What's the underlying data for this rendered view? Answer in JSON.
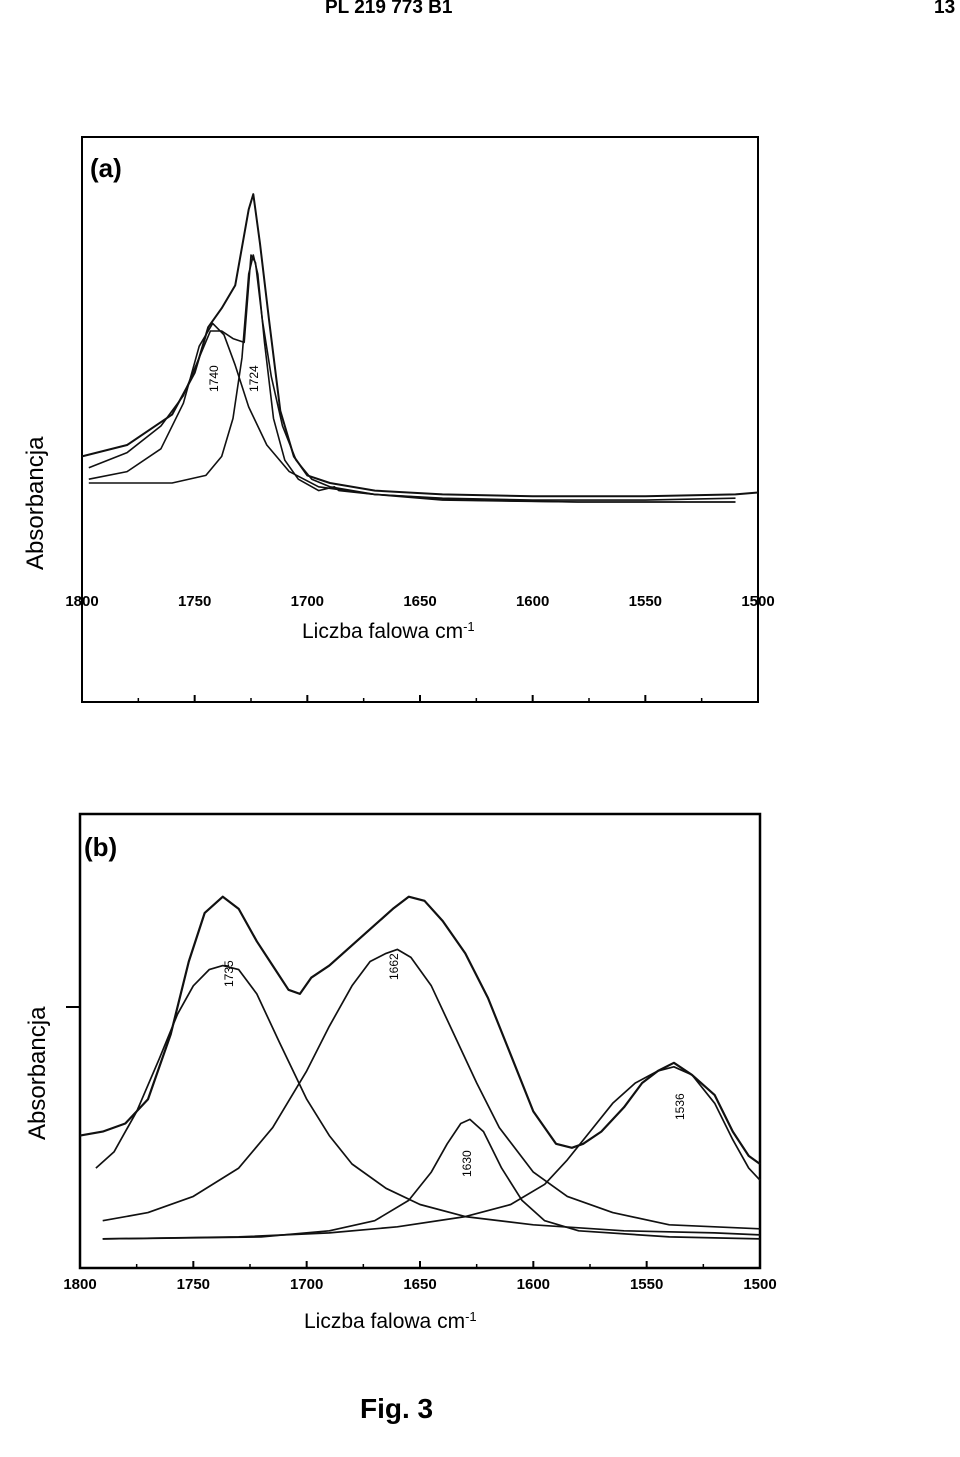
{
  "header": {
    "document_id": "PL 219 773 B1",
    "page_number": "13"
  },
  "figure_label": "Fig. 3",
  "chart_data": [
    {
      "type": "line",
      "panel_label": "(a)",
      "xlabel": "Liczba falowa cm",
      "xlabel_sup": "-1",
      "ylabel": "Absorbancja",
      "xlim": [
        1800,
        1500
      ],
      "x_reversed": true,
      "ylim": [
        0,
        1
      ],
      "x_ticks": [
        "1800",
        "1750",
        "1700",
        "1650",
        "1600",
        "1550",
        "1500"
      ],
      "grid": false,
      "peak_annotations": [
        "1740",
        "1724"
      ],
      "series": [
        {
          "values": [
            [
              1800,
              0.22
            ],
            [
              1780,
              0.25
            ],
            [
              1760,
              0.33
            ],
            [
              1750,
              0.44
            ],
            [
              1744,
              0.56
            ],
            [
              1738,
              0.61
            ],
            [
              1732,
              0.67
            ],
            [
              1726,
              0.87
            ],
            [
              1724,
              0.91
            ],
            [
              1721,
              0.78
            ],
            [
              1717,
              0.58
            ],
            [
              1712,
              0.34
            ],
            [
              1706,
              0.22
            ],
            [
              1700,
              0.17
            ],
            [
              1690,
              0.15
            ],
            [
              1670,
              0.13
            ],
            [
              1640,
              0.12
            ],
            [
              1600,
              0.115
            ],
            [
              1550,
              0.115
            ],
            [
              1510,
              0.12
            ],
            [
              1500,
              0.125
            ]
          ]
        },
        {
          "values": [
            [
              1797,
              0.19
            ],
            [
              1780,
              0.23
            ],
            [
              1765,
              0.3
            ],
            [
              1755,
              0.38
            ],
            [
              1748,
              0.48
            ],
            [
              1743,
              0.55
            ],
            [
              1738,
              0.55
            ],
            [
              1733,
              0.53
            ],
            [
              1728,
              0.52
            ],
            [
              1725,
              0.75
            ],
            [
              1723,
              0.73
            ],
            [
              1720,
              0.58
            ],
            [
              1716,
              0.43
            ],
            [
              1711,
              0.3
            ],
            [
              1705,
              0.21
            ],
            [
              1698,
              0.16
            ],
            [
              1690,
              0.14
            ],
            [
              1670,
              0.12
            ],
            [
              1640,
              0.11
            ],
            [
              1600,
              0.105
            ],
            [
              1550,
              0.105
            ],
            [
              1510,
              0.11
            ]
          ]
        },
        {
          "values": [
            [
              1797,
              0.16
            ],
            [
              1780,
              0.18
            ],
            [
              1765,
              0.24
            ],
            [
              1755,
              0.36
            ],
            [
              1748,
              0.51
            ],
            [
              1742,
              0.57
            ],
            [
              1737,
              0.54
            ],
            [
              1732,
              0.46
            ],
            [
              1726,
              0.35
            ],
            [
              1718,
              0.25
            ],
            [
              1708,
              0.18
            ],
            [
              1695,
              0.14
            ],
            [
              1670,
              0.12
            ],
            [
              1630,
              0.105
            ],
            [
              1580,
              0.1
            ],
            [
              1510,
              0.1
            ]
          ]
        },
        {
          "values": [
            [
              1797,
              0.15
            ],
            [
              1760,
              0.15
            ],
            [
              1745,
              0.17
            ],
            [
              1738,
              0.22
            ],
            [
              1733,
              0.32
            ],
            [
              1729,
              0.48
            ],
            [
              1726,
              0.7
            ],
            [
              1724,
              0.75
            ],
            [
              1722,
              0.7
            ],
            [
              1719,
              0.52
            ],
            [
              1715,
              0.32
            ],
            [
              1710,
              0.21
            ],
            [
              1704,
              0.16
            ],
            [
              1695,
              0.13
            ],
            [
              1688,
              0.14
            ],
            [
              1686,
              0.13
            ],
            [
              1670,
              0.12
            ],
            [
              1640,
              0.105
            ],
            [
              1580,
              0.1
            ],
            [
              1510,
              0.1
            ]
          ]
        }
      ]
    },
    {
      "type": "line",
      "panel_label": "(b)",
      "xlabel": "Liczba falowa cm",
      "xlabel_sup": "-1",
      "ylabel": "Absorbancja",
      "xlim": [
        1800,
        1500
      ],
      "x_reversed": true,
      "ylim": [
        0,
        1
      ],
      "x_ticks": [
        "1800",
        "1750",
        "1700",
        "1650",
        "1600",
        "1550",
        "1500"
      ],
      "grid": false,
      "peak_annotations": [
        "1735",
        "1662",
        "1630",
        "1536"
      ],
      "series": [
        {
          "values": [
            [
              1800,
              0.27
            ],
            [
              1790,
              0.28
            ],
            [
              1780,
              0.3
            ],
            [
              1770,
              0.36
            ],
            [
              1760,
              0.52
            ],
            [
              1752,
              0.7
            ],
            [
              1745,
              0.82
            ],
            [
              1737,
              0.86
            ],
            [
              1730,
              0.83
            ],
            [
              1722,
              0.75
            ],
            [
              1715,
              0.69
            ],
            [
              1708,
              0.63
            ],
            [
              1703,
              0.62
            ],
            [
              1698,
              0.66
            ],
            [
              1690,
              0.69
            ],
            [
              1680,
              0.74
            ],
            [
              1670,
              0.79
            ],
            [
              1662,
              0.83
            ],
            [
              1655,
              0.86
            ],
            [
              1648,
              0.85
            ],
            [
              1640,
              0.8
            ],
            [
              1630,
              0.72
            ],
            [
              1620,
              0.61
            ],
            [
              1610,
              0.47
            ],
            [
              1600,
              0.33
            ],
            [
              1590,
              0.25
            ],
            [
              1583,
              0.24
            ],
            [
              1578,
              0.25
            ],
            [
              1570,
              0.28
            ],
            [
              1560,
              0.34
            ],
            [
              1552,
              0.4
            ],
            [
              1545,
              0.43
            ],
            [
              1538,
              0.45
            ],
            [
              1530,
              0.42
            ],
            [
              1520,
              0.37
            ],
            [
              1512,
              0.28
            ],
            [
              1505,
              0.22
            ],
            [
              1500,
              0.2
            ]
          ]
        },
        {
          "name": "1735",
          "peak": 1735,
          "height": 0.69,
          "values": [
            [
              1793,
              0.19
            ],
            [
              1785,
              0.23
            ],
            [
              1775,
              0.33
            ],
            [
              1765,
              0.46
            ],
            [
              1757,
              0.57
            ],
            [
              1750,
              0.64
            ],
            [
              1743,
              0.68
            ],
            [
              1737,
              0.69
            ],
            [
              1730,
              0.68
            ],
            [
              1722,
              0.62
            ],
            [
              1712,
              0.5
            ],
            [
              1700,
              0.36
            ],
            [
              1690,
              0.27
            ],
            [
              1680,
              0.2
            ],
            [
              1665,
              0.14
            ],
            [
              1650,
              0.1
            ],
            [
              1630,
              0.07
            ],
            [
              1600,
              0.05
            ],
            [
              1560,
              0.035
            ],
            [
              1520,
              0.03
            ],
            [
              1500,
              0.025
            ]
          ]
        },
        {
          "name": "1662",
          "peak": 1662,
          "height": 0.73,
          "values": [
            [
              1790,
              0.06
            ],
            [
              1770,
              0.08
            ],
            [
              1750,
              0.12
            ],
            [
              1730,
              0.19
            ],
            [
              1715,
              0.29
            ],
            [
              1700,
              0.43
            ],
            [
              1690,
              0.54
            ],
            [
              1680,
              0.64
            ],
            [
              1672,
              0.7
            ],
            [
              1665,
              0.72
            ],
            [
              1660,
              0.73
            ],
            [
              1654,
              0.71
            ],
            [
              1645,
              0.64
            ],
            [
              1635,
              0.52
            ],
            [
              1625,
              0.4
            ],
            [
              1615,
              0.29
            ],
            [
              1600,
              0.18
            ],
            [
              1585,
              0.12
            ],
            [
              1565,
              0.08
            ],
            [
              1540,
              0.05
            ],
            [
              1500,
              0.04
            ]
          ]
        },
        {
          "name": "1630",
          "peak": 1630,
          "height": 0.31,
          "values": [
            [
              1790,
              0.015
            ],
            [
              1720,
              0.02
            ],
            [
              1690,
              0.035
            ],
            [
              1670,
              0.06
            ],
            [
              1655,
              0.11
            ],
            [
              1645,
              0.18
            ],
            [
              1638,
              0.25
            ],
            [
              1632,
              0.3
            ],
            [
              1628,
              0.31
            ],
            [
              1622,
              0.28
            ],
            [
              1614,
              0.19
            ],
            [
              1605,
              0.11
            ],
            [
              1595,
              0.06
            ],
            [
              1580,
              0.035
            ],
            [
              1540,
              0.02
            ],
            [
              1500,
              0.015
            ]
          ]
        },
        {
          "name": "1536",
          "peak": 1536,
          "height": 0.44,
          "values": [
            [
              1790,
              0.015
            ],
            [
              1730,
              0.02
            ],
            [
              1690,
              0.03
            ],
            [
              1660,
              0.045
            ],
            [
              1630,
              0.07
            ],
            [
              1610,
              0.1
            ],
            [
              1595,
              0.15
            ],
            [
              1585,
              0.21
            ],
            [
              1575,
              0.28
            ],
            [
              1565,
              0.35
            ],
            [
              1555,
              0.4
            ],
            [
              1545,
              0.43
            ],
            [
              1538,
              0.44
            ],
            [
              1530,
              0.42
            ],
            [
              1520,
              0.35
            ],
            [
              1512,
              0.26
            ],
            [
              1505,
              0.19
            ],
            [
              1500,
              0.16
            ]
          ]
        }
      ]
    }
  ]
}
